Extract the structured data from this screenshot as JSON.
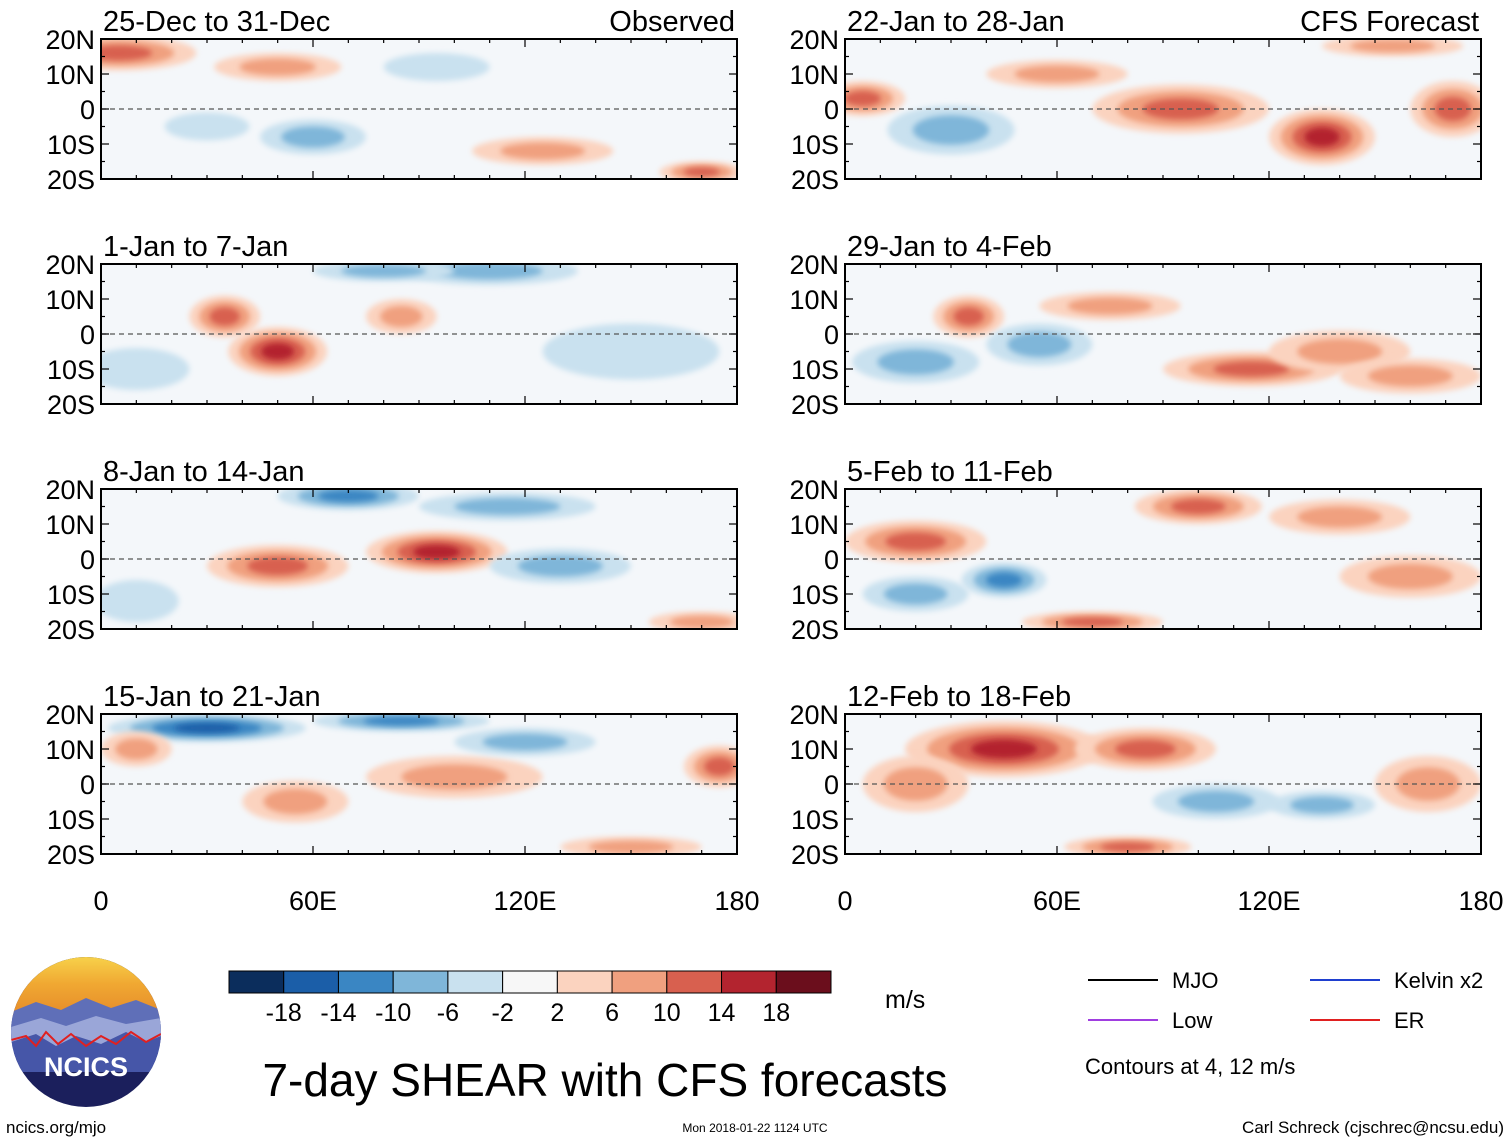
{
  "chart_data": {
    "type": "heatmap",
    "title": "7-day SHEAR with CFS forecasts",
    "units": "m/s",
    "columns": [
      {
        "label": "Observed",
        "panels": [
          "25-Dec to 31-Dec",
          "1-Jan to 7-Jan",
          "8-Jan to 14-Jan",
          "15-Jan to 21-Jan"
        ]
      },
      {
        "label": "CFS Forecast",
        "panels": [
          "22-Jan to 28-Jan",
          "29-Jan to 4-Feb",
          "5-Feb to 11-Feb",
          "12-Feb to 18-Feb"
        ]
      }
    ],
    "x_axis": {
      "range": [
        0,
        180
      ],
      "ticks": [
        0,
        60,
        120,
        180
      ],
      "tick_labels": [
        "0",
        "60E",
        "120E",
        "180"
      ]
    },
    "y_axis": {
      "range": [
        -20,
        20
      ],
      "ticks": [
        20,
        10,
        0,
        -10,
        -20
      ],
      "tick_labels": [
        "20N",
        "10N",
        "0",
        "10S",
        "20S"
      ]
    },
    "colorbar": {
      "levels": [
        -18,
        -14,
        -10,
        -6,
        -2,
        2,
        6,
        10,
        14,
        18
      ],
      "labels": [
        "-18",
        "-14",
        "-10",
        "-6",
        "-2",
        "2",
        "6",
        "10",
        "14",
        "18"
      ],
      "colors": [
        "#0b2d5c",
        "#1b5ea8",
        "#3a86c3",
        "#7fb6d9",
        "#c9e1ef",
        "#f7f7f7",
        "#fbd3bf",
        "#f0a07f",
        "#d8604f",
        "#b3242f",
        "#6b0e1c"
      ]
    },
    "contour_legend": [
      {
        "name": "MJO",
        "color": "#000000"
      },
      {
        "name": "Kelvin x2",
        "color": "#1f3fcf"
      },
      {
        "name": "Low",
        "color": "#a03ee0"
      },
      {
        "name": "ER",
        "color": "#e02020"
      }
    ],
    "contour_note": "Contours at 4, 12 m/s",
    "shading_blobs": [
      [
        [
          [
            5,
            16,
            22,
            5,
            10
          ],
          [
            50,
            12,
            18,
            4,
            6
          ],
          [
            170,
            -18,
            12,
            3,
            12
          ],
          [
            125,
            -12,
            20,
            4,
            8
          ],
          [
            60,
            -8,
            15,
            5,
            -6
          ],
          [
            95,
            12,
            15,
            4,
            -5
          ],
          [
            30,
            -5,
            12,
            4,
            -4
          ]
        ],
        [
          [
            50,
            -5,
            14,
            7,
            16
          ],
          [
            35,
            5,
            10,
            6,
            12
          ],
          [
            85,
            5,
            10,
            5,
            8
          ],
          [
            110,
            18,
            25,
            4,
            -8
          ],
          [
            150,
            -5,
            25,
            8,
            -5
          ],
          [
            10,
            -10,
            15,
            6,
            -4
          ],
          [
            80,
            18,
            20,
            3,
            -6
          ]
        ],
        [
          [
            95,
            2,
            20,
            6,
            16
          ],
          [
            50,
            -2,
            20,
            6,
            10
          ],
          [
            115,
            15,
            25,
            4,
            -6
          ],
          [
            130,
            -2,
            20,
            5,
            -8
          ],
          [
            70,
            18,
            20,
            4,
            -12
          ],
          [
            10,
            -12,
            12,
            6,
            -5
          ],
          [
            170,
            -18,
            15,
            3,
            8
          ]
        ],
        [
          [
            30,
            16,
            28,
            4,
            -14
          ],
          [
            85,
            18,
            25,
            3,
            -12
          ],
          [
            100,
            2,
            25,
            6,
            6
          ],
          [
            55,
            -5,
            15,
            6,
            6
          ],
          [
            120,
            12,
            20,
            4,
            -6
          ],
          [
            175,
            5,
            10,
            6,
            10
          ],
          [
            150,
            -18,
            20,
            3,
            6
          ],
          [
            10,
            10,
            10,
            5,
            6
          ]
        ]
      ],
      [
        [
          [
            135,
            -8,
            15,
            8,
            16
          ],
          [
            95,
            0,
            25,
            7,
            10
          ],
          [
            172,
            0,
            12,
            8,
            10
          ],
          [
            5,
            3,
            12,
            5,
            10
          ],
          [
            30,
            -6,
            18,
            7,
            -8
          ],
          [
            155,
            18,
            20,
            3,
            8
          ],
          [
            60,
            10,
            20,
            4,
            6
          ]
        ],
        [
          [
            35,
            5,
            10,
            6,
            10
          ],
          [
            115,
            -10,
            25,
            5,
            10
          ],
          [
            140,
            -5,
            20,
            6,
            6
          ],
          [
            20,
            -8,
            18,
            6,
            -7
          ],
          [
            55,
            -3,
            15,
            6,
            -6
          ],
          [
            75,
            8,
            20,
            4,
            6
          ],
          [
            160,
            -12,
            20,
            5,
            6
          ]
        ],
        [
          [
            100,
            15,
            18,
            5,
            12
          ],
          [
            20,
            5,
            20,
            6,
            10
          ],
          [
            45,
            -6,
            12,
            5,
            -10
          ],
          [
            20,
            -10,
            15,
            5,
            -8
          ],
          [
            70,
            -18,
            20,
            3,
            10
          ],
          [
            140,
            12,
            20,
            5,
            6
          ],
          [
            160,
            -5,
            20,
            6,
            6
          ]
        ],
        [
          [
            45,
            10,
            28,
            8,
            16
          ],
          [
            85,
            10,
            20,
            6,
            10
          ],
          [
            105,
            -5,
            18,
            5,
            -8
          ],
          [
            135,
            -6,
            15,
            4,
            -7
          ],
          [
            165,
            0,
            15,
            8,
            8
          ],
          [
            80,
            -18,
            18,
            3,
            10
          ],
          [
            20,
            0,
            15,
            8,
            6
          ]
        ]
      ]
    ]
  },
  "branding": {
    "logo_text": "NCICS",
    "site": "ncics.org/mjo",
    "timestamp": "Mon 2018-01-22 1124 UTC",
    "credit": "Carl Schreck (cjschrec@ncsu.edu)"
  }
}
